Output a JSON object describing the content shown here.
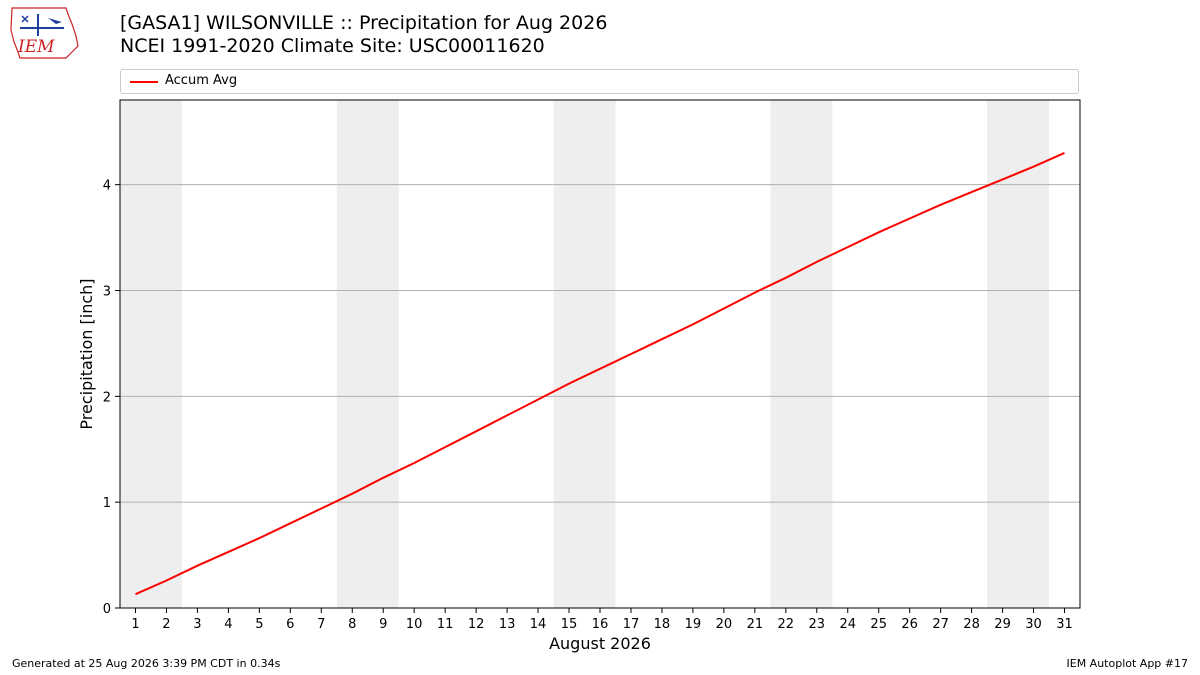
{
  "header": {
    "title_line1": "[GASA1] WILSONVILLE :: Precipitation for Aug 2026",
    "title_line2": "NCEI 1991-2020 Climate Site: USC00011620"
  },
  "logo": {
    "text": "IEM"
  },
  "footer": {
    "generated": "Generated at 25 Aug 2026 3:39 PM CDT in 0.34s",
    "app": "IEM Autoplot App #17"
  },
  "colors": {
    "line": "#ff0000",
    "weekend": "#eeeeee",
    "grid": "#b0b0b0",
    "logo": "#cc2222"
  },
  "chart_data": {
    "type": "line",
    "xlabel": "August 2026",
    "ylabel": "Precipitation [inch]",
    "xlim": [
      0.5,
      31.5
    ],
    "ylim": [
      0,
      4.8
    ],
    "xticks": [
      1,
      2,
      3,
      4,
      5,
      6,
      7,
      8,
      9,
      10,
      11,
      12,
      13,
      14,
      15,
      16,
      17,
      18,
      19,
      20,
      21,
      22,
      23,
      24,
      25,
      26,
      27,
      28,
      29,
      30,
      31
    ],
    "yticks": [
      0,
      1,
      2,
      3,
      4
    ],
    "grid": "horizontal",
    "weekend_bands": [
      [
        0.5,
        2.5
      ],
      [
        7.5,
        9.5
      ],
      [
        14.5,
        16.5
      ],
      [
        21.5,
        23.5
      ],
      [
        28.5,
        30.5
      ]
    ],
    "legend": {
      "placement": "top",
      "entries": [
        "Accum Avg"
      ]
    },
    "series": [
      {
        "name": "Accum Avg",
        "x": [
          1,
          2,
          3,
          4,
          5,
          6,
          7,
          8,
          9,
          10,
          11,
          12,
          13,
          14,
          15,
          16,
          17,
          18,
          19,
          20,
          21,
          22,
          23,
          24,
          25,
          26,
          27,
          28,
          29,
          30,
          31
        ],
        "values": [
          0.13,
          0.26,
          0.4,
          0.53,
          0.66,
          0.8,
          0.94,
          1.08,
          1.23,
          1.37,
          1.52,
          1.67,
          1.82,
          1.97,
          2.12,
          2.26,
          2.4,
          2.54,
          2.68,
          2.83,
          2.98,
          3.12,
          3.27,
          3.41,
          3.55,
          3.68,
          3.81,
          3.93,
          4.05,
          4.17,
          4.3
        ]
      }
    ]
  }
}
